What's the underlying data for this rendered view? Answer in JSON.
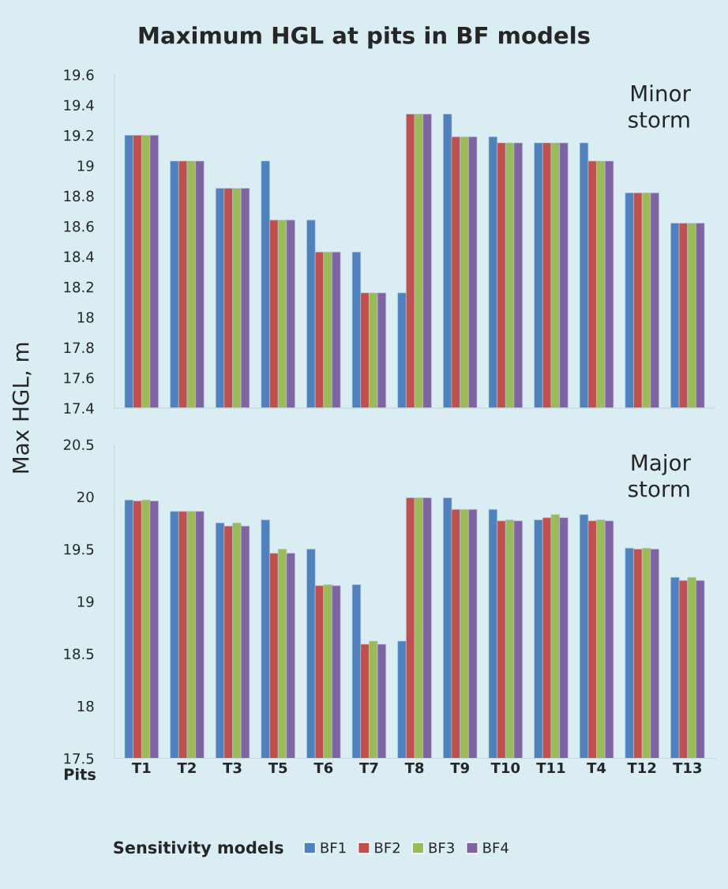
{
  "chart_data": [
    {
      "type": "bar",
      "title": "Maximum HGL at pits in BF models",
      "ylabel": "Max HGL, m",
      "categories": [
        null,
        null,
        null,
        null,
        null,
        null,
        null,
        null,
        null,
        null,
        null,
        null,
        null
      ],
      "ylim": [
        17.4,
        19.6
      ],
      "yticks": [
        {
          "value": 17.4,
          "label": "17.4"
        },
        {
          "value": 17.6,
          "label": "17.6"
        },
        {
          "value": 17.8,
          "label": "17.8"
        },
        18,
        {
          "value": 18.2,
          "label": "18.2"
        },
        {
          "value": 18.4,
          "label": "18.4"
        },
        {
          "value": 18.6,
          "label": "18.6"
        },
        {
          "value": 18.8,
          "label": "18.8"
        },
        19,
        {
          "value": 19.2,
          "label": "19.2"
        },
        {
          "value": 19.4,
          "label": "19.4"
        },
        {
          "value": 19.6,
          "label": "19.6"
        }
      ],
      "tick_labels": "y",
      "grid": false,
      "legend": false,
      "annotations": [
        "Minor storm"
      ],
      "series": [
        {
          "color": "#4f81bd",
          "values": [
            19.2,
            19.03,
            18.85,
            19.03,
            18.64,
            18.43,
            18.16,
            19.34,
            19.19,
            19.15,
            19.15,
            18.82,
            18.62
          ]
        },
        {
          "color": "#c0504d",
          "values": [
            19.2,
            19.03,
            18.85,
            18.64,
            18.43,
            18.16,
            19.34,
            19.19,
            19.15,
            19.15,
            19.03,
            18.82,
            18.62
          ]
        },
        {
          "color": "#9bbb59",
          "values": [
            19.2,
            19.03,
            18.85,
            18.64,
            18.43,
            18.16,
            19.34,
            19.19,
            19.15,
            19.15,
            19.03,
            18.82,
            18.62
          ]
        },
        {
          "color": "#8064a2",
          "values": [
            19.2,
            19.03,
            18.85,
            18.64,
            18.43,
            18.16,
            19.34,
            19.19,
            19.15,
            19.15,
            19.03,
            18.82,
            18.62
          ]
        }
      ]
    },
    {
      "type": "bar",
      "xlabel": "Pits",
      "legend_title": "Sensitivity models",
      "categories": [
        "T1",
        "T2",
        "T3",
        "T5",
        "T6",
        "T7",
        "T8",
        "T9",
        "T10",
        "T11",
        "T4",
        "T12",
        "T13"
      ],
      "ylim": [
        17.5,
        20.5
      ],
      "yticks": [
        17.5,
        18,
        18.5,
        19,
        19.5,
        20,
        20.5
      ],
      "grid": false,
      "legend": "bottom",
      "annotations": [
        "Major storm"
      ],
      "series": [
        {
          "name": "BF1",
          "color": "#4f81bd",
          "values": [
            19.97,
            19.86,
            19.75,
            19.78,
            19.5,
            19.16,
            18.62,
            19.99,
            19.88,
            19.78,
            19.83,
            19.51,
            19.23
          ]
        },
        {
          "name": "BF2",
          "color": "#c0504d",
          "values": [
            19.96,
            19.86,
            19.72,
            19.46,
            19.15,
            18.59,
            19.99,
            19.88,
            19.77,
            19.8,
            19.77,
            19.5,
            19.2
          ]
        },
        {
          "name": "BF3",
          "color": "#9bbb59",
          "values": [
            19.97,
            19.86,
            19.75,
            19.5,
            19.16,
            18.62,
            19.99,
            19.88,
            19.78,
            19.83,
            19.78,
            19.51,
            19.23
          ]
        },
        {
          "name": "BF4",
          "color": "#8064a2",
          "values": [
            19.96,
            19.86,
            19.72,
            19.46,
            19.15,
            18.59,
            19.99,
            19.88,
            19.77,
            19.8,
            19.77,
            19.5,
            19.2
          ]
        }
      ]
    }
  ]
}
